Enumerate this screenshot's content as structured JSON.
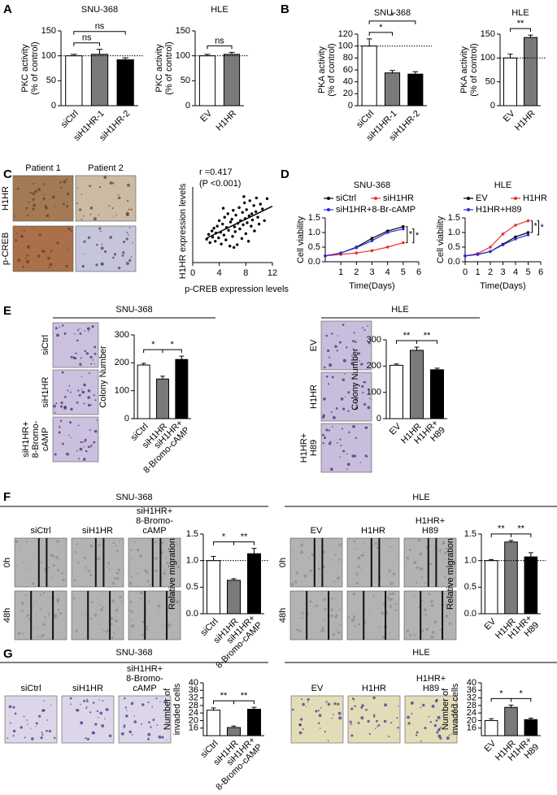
{
  "panels": [
    "A",
    "B",
    "C",
    "D",
    "E",
    "F",
    "G"
  ],
  "micrographs": {
    "C": {
      "columns": [
        "Patient 1",
        "Patient 2"
      ],
      "rows": [
        "H1HR",
        "p-CREB"
      ]
    },
    "E_snu": {
      "title": "SNU-368",
      "rows": [
        "siCtrl",
        "siH1HR",
        "siH1HR+\n8-Bromo-\ncAMP"
      ]
    },
    "E_hle": {
      "title": "HLE",
      "rows": [
        "EV",
        "H1HR",
        "H1HR+\nH89"
      ]
    },
    "F_snu": {
      "title": "SNU-368",
      "columns": [
        "siCtrl",
        "siH1HR",
        "siH1HR+\n8-Bromo-\ncAMP"
      ],
      "rows": [
        "0h",
        "48h"
      ]
    },
    "F_hle": {
      "title": "HLE",
      "columns": [
        "EV",
        "H1HR",
        "H1HR+\nH89"
      ],
      "rows": [
        "0h",
        "48h"
      ]
    },
    "G_snu": {
      "title": "SNU-368",
      "columns": [
        "siCtrl",
        "siH1HR",
        "siH1HR+\n8-Bromo-\ncAMP"
      ]
    },
    "G_hle": {
      "title": "HLE",
      "columns": [
        "EV",
        "H1HR",
        "H1HR+\nH89"
      ]
    }
  },
  "chart_data": [
    {
      "type": "bar",
      "title": "SNU-368",
      "ylabel": "PKC activity\n(% of control)",
      "categories": [
        "siCtrl",
        "siH1HR-1",
        "siH1HR-2"
      ],
      "values": [
        100,
        103,
        92
      ],
      "errors": [
        3,
        10,
        4
      ],
      "colors": [
        "#ffffff",
        "#7a7a7a",
        "#000000"
      ],
      "ylim": [
        0,
        150
      ],
      "yticks": [
        0,
        50,
        100,
        150
      ],
      "reference_line": 100,
      "significance": [
        {
          "from": 0,
          "to": 1,
          "label": "ns"
        },
        {
          "from": 0,
          "to": 2,
          "label": "ns"
        }
      ]
    },
    {
      "type": "bar",
      "title": "HLE",
      "ylabel": "PKC activity\n(% of control)",
      "categories": [
        "EV",
        "H1HR"
      ],
      "values": [
        100,
        103
      ],
      "errors": [
        3,
        4
      ],
      "colors": [
        "#ffffff",
        "#7a7a7a"
      ],
      "ylim": [
        0,
        150
      ],
      "yticks": [
        0,
        50,
        100,
        150
      ],
      "reference_line": 100,
      "significance": [
        {
          "from": 0,
          "to": 1,
          "label": "ns"
        }
      ]
    },
    {
      "type": "bar",
      "title": "SNU-368",
      "ylabel": "PKA activity\n(% of control)",
      "categories": [
        "siCtrl",
        "siH1HR-1",
        "siH1HR-2"
      ],
      "values": [
        100,
        55,
        53
      ],
      "errors": [
        12,
        4,
        4
      ],
      "colors": [
        "#ffffff",
        "#7a7a7a",
        "#000000"
      ],
      "ylim": [
        0,
        120
      ],
      "yticks": [
        0,
        20,
        40,
        60,
        80,
        100,
        120
      ],
      "reference_line": 100,
      "significance": [
        {
          "from": 0,
          "to": 1,
          "label": "*"
        },
        {
          "from": 0,
          "to": 2,
          "label": "*"
        }
      ]
    },
    {
      "type": "bar",
      "title": "HLE",
      "ylabel": "PKA activity\n(% of control)",
      "categories": [
        "EV",
        "H1HR"
      ],
      "values": [
        100,
        143
      ],
      "errors": [
        8,
        5
      ],
      "colors": [
        "#ffffff",
        "#7a7a7a"
      ],
      "ylim": [
        0,
        150
      ],
      "yticks": [
        0,
        50,
        100,
        150
      ],
      "reference_line": 100,
      "significance": [
        {
          "from": 0,
          "to": 1,
          "label": "**"
        }
      ]
    },
    {
      "type": "scatter",
      "annotation": [
        "r =0.417",
        "(P <0.001)"
      ],
      "xlabel": "p-CREB expression levels",
      "ylabel": "H1HR expression levels",
      "x": [
        2.1,
        2.4,
        2.6,
        2.9,
        3.0,
        3.2,
        3.4,
        3.5,
        3.7,
        3.9,
        4.0,
        4.2,
        4.3,
        4.5,
        4.7,
        4.8,
        5.0,
        5.1,
        5.3,
        5.4,
        5.6,
        5.7,
        5.9,
        6.0,
        6.1,
        6.3,
        6.4,
        6.5,
        6.7,
        6.8,
        7.0,
        7.1,
        7.2,
        7.4,
        7.5,
        7.6,
        7.8,
        7.9,
        8.0,
        8.1,
        8.2,
        8.4,
        8.5,
        8.6,
        8.8,
        8.9,
        9.0,
        9.2,
        9.3,
        9.5,
        9.6,
        9.8,
        10.0,
        10.2,
        10.5,
        10.8,
        11.2,
        4.6,
        6.2,
        7.7
      ],
      "y": [
        3.4,
        4.1,
        2.9,
        4.6,
        3.7,
        5.0,
        3.1,
        4.3,
        5.3,
        3.6,
        6.1,
        4.4,
        2.7,
        5.6,
        4.0,
        6.6,
        3.3,
        5.1,
        7.1,
        4.7,
        2.4,
        5.9,
        6.3,
        3.8,
        7.6,
        5.2,
        4.5,
        6.9,
        2.6,
        5.7,
        8.0,
        4.9,
        6.1,
        3.5,
        7.3,
        5.5,
        8.7,
        6.4,
        4.2,
        7.7,
        5.8,
        3.1,
        6.8,
        9.0,
        5.3,
        7.1,
        6.2,
        8.3,
        4.6,
        7.4,
        9.4,
        6.6,
        5.6,
        8.5,
        7.8,
        6.1,
        9.3,
        7.9,
        2.2,
        9.6
      ],
      "fit_line": {
        "x": [
          2,
          12
        ],
        "y": [
          3.5,
          8.2
        ]
      },
      "xlim": [
        0,
        12
      ],
      "xticks": [
        0,
        4,
        8,
        12
      ],
      "ylim": [
        0,
        11
      ]
    },
    {
      "type": "line",
      "title": "SNU-368",
      "xlabel": "Time(Days)",
      "ylabel": "Cell viability",
      "x": [
        0,
        1,
        2,
        3,
        4,
        5
      ],
      "series": [
        {
          "name": "siCtrl",
          "color": "#000000",
          "values": [
            0.2,
            0.3,
            0.5,
            0.8,
            1.05,
            1.2
          ]
        },
        {
          "name": "siH1HR",
          "color": "#e8312a",
          "values": [
            0.2,
            0.25,
            0.3,
            0.38,
            0.5,
            0.65
          ]
        },
        {
          "name": "siH1HR+8-Br-cAMP",
          "color": "#2a2ae0",
          "values": [
            0.2,
            0.3,
            0.48,
            0.72,
            1.0,
            1.12
          ]
        }
      ],
      "xlim": [
        0,
        6
      ],
      "xticks": [
        1,
        2,
        3,
        4,
        5,
        6
      ],
      "ylim": [
        0,
        1.5
      ],
      "yticks": [
        {
          "value": 0,
          "label": "0.0"
        },
        0.5,
        {
          "value": 1,
          "label": "1.0"
        },
        1.5
      ],
      "significance": [
        {
          "from": 0,
          "to": 1,
          "label": "*"
        },
        {
          "from": 2,
          "to": 1,
          "label": "*"
        }
      ]
    },
    {
      "type": "line",
      "title": "HLE",
      "xlabel": "Time(Days)",
      "ylabel": "Cell viability",
      "x": [
        0,
        1,
        2,
        3,
        4,
        5
      ],
      "series": [
        {
          "name": "EV",
          "color": "#000000",
          "values": [
            0.2,
            0.25,
            0.35,
            0.6,
            0.85,
            1.0
          ]
        },
        {
          "name": "H1HR",
          "color": "#e8312a",
          "values": [
            0.2,
            0.28,
            0.5,
            0.95,
            1.25,
            1.4
          ]
        },
        {
          "name": "H1HR+H89",
          "color": "#2a2ae0",
          "values": [
            0.2,
            0.25,
            0.35,
            0.58,
            0.78,
            0.92
          ]
        }
      ],
      "xlim": [
        0,
        6
      ],
      "xticks": [
        0,
        1,
        2,
        3,
        4,
        5,
        6
      ],
      "ylim": [
        0,
        1.5
      ],
      "yticks": [
        {
          "value": 0,
          "label": "0.0"
        },
        0.5,
        {
          "value": 1,
          "label": "1.0"
        },
        1.5
      ],
      "significance": [
        {
          "from": 1,
          "to": 0,
          "label": "*"
        },
        {
          "from": 1,
          "to": 2,
          "label": "*"
        }
      ]
    },
    {
      "type": "bar",
      "ylabel": "Colony Number",
      "categories": [
        "siCtrl",
        "siH1HR",
        "siH1HR+\n8-Bromo-cAMP"
      ],
      "values": [
        192,
        142,
        212
      ],
      "errors": [
        6,
        10,
        12
      ],
      "colors": [
        "#ffffff",
        "#7a7a7a",
        "#000000"
      ],
      "ylim": [
        0,
        300
      ],
      "yticks": [
        0,
        100,
        200,
        300
      ],
      "significance": [
        {
          "from": 0,
          "to": 1,
          "label": "*"
        },
        {
          "from": 1,
          "to": 2,
          "label": "*"
        }
      ]
    },
    {
      "type": "bar",
      "ylabel": "Colony Number",
      "categories": [
        "EV",
        "H1HR",
        "H1HR+\nH89"
      ],
      "values": [
        203,
        260,
        186
      ],
      "errors": [
        5,
        12,
        6
      ],
      "colors": [
        "#ffffff",
        "#7a7a7a",
        "#000000"
      ],
      "ylim": [
        0,
        300
      ],
      "yticks": [
        0,
        100,
        200,
        300
      ],
      "significance": [
        {
          "from": 0,
          "to": 1,
          "label": "**"
        },
        {
          "from": 1,
          "to": 2,
          "label": "**"
        }
      ]
    },
    {
      "type": "bar",
      "ylabel": "Relative migration",
      "categories": [
        "siCtrl",
        "siH1HR",
        "siH1HR+\n8-Bromo-cAMP"
      ],
      "values": [
        1.0,
        0.63,
        1.13
      ],
      "errors": [
        0.08,
        0.03,
        0.1
      ],
      "colors": [
        "#ffffff",
        "#7a7a7a",
        "#000000"
      ],
      "ylim": [
        0,
        1.5
      ],
      "yticks": [
        {
          "value": 0,
          "label": "0.0"
        },
        0.5,
        {
          "value": 1,
          "label": "1.0"
        },
        1.5
      ],
      "reference_line": 1,
      "significance": [
        {
          "from": 0,
          "to": 1,
          "label": "*"
        },
        {
          "from": 1,
          "to": 2,
          "label": "**"
        }
      ]
    },
    {
      "type": "bar",
      "ylabel": "Relative migration",
      "categories": [
        "EV",
        "H1HR",
        "H1HR+\nH89"
      ],
      "values": [
        1.0,
        1.35,
        1.07
      ],
      "errors": [
        0.02,
        0.03,
        0.08
      ],
      "colors": [
        "#ffffff",
        "#7a7a7a",
        "#000000"
      ],
      "ylim": [
        0,
        1.5
      ],
      "yticks": [
        {
          "value": 0,
          "label": "0.0"
        },
        0.5,
        {
          "value": 1,
          "label": "1.0"
        },
        1.5
      ],
      "reference_line": 1,
      "significance": [
        {
          "from": 0,
          "to": 1,
          "label": "**"
        },
        {
          "from": 1,
          "to": 2,
          "label": "**"
        }
      ]
    },
    {
      "type": "bar",
      "ylabel": "Number of\ninvaded cells",
      "categories": [
        "siCtrl",
        "siH1HR",
        "siH1HR+\n8-Bromo-cAMP"
      ],
      "values": [
        25.5,
        16.3,
        26
      ],
      "errors": [
        1.2,
        0.8,
        1
      ],
      "colors": [
        "#ffffff",
        "#7a7a7a",
        "#000000"
      ],
      "ylim": [
        12,
        40
      ],
      "yticks": [
        16,
        20,
        24,
        28,
        32,
        36,
        40
      ],
      "significance": [
        {
          "from": 0,
          "to": 1,
          "label": "**"
        },
        {
          "from": 1,
          "to": 2,
          "label": "**"
        }
      ]
    },
    {
      "type": "bar",
      "ylabel": "Number of\ninvaded cells",
      "categories": [
        "EV",
        "H1HR",
        "H1HR+\nH89"
      ],
      "values": [
        20,
        27,
        20.5
      ],
      "errors": [
        1,
        1.2,
        0.8
      ],
      "colors": [
        "#ffffff",
        "#7a7a7a",
        "#000000"
      ],
      "ylim": [
        12,
        40
      ],
      "yticks": [
        16,
        20,
        24,
        28,
        32,
        36,
        40
      ],
      "significance": [
        {
          "from": 0,
          "to": 1,
          "label": "*"
        },
        {
          "from": 1,
          "to": 2,
          "label": "*"
        }
      ]
    }
  ]
}
